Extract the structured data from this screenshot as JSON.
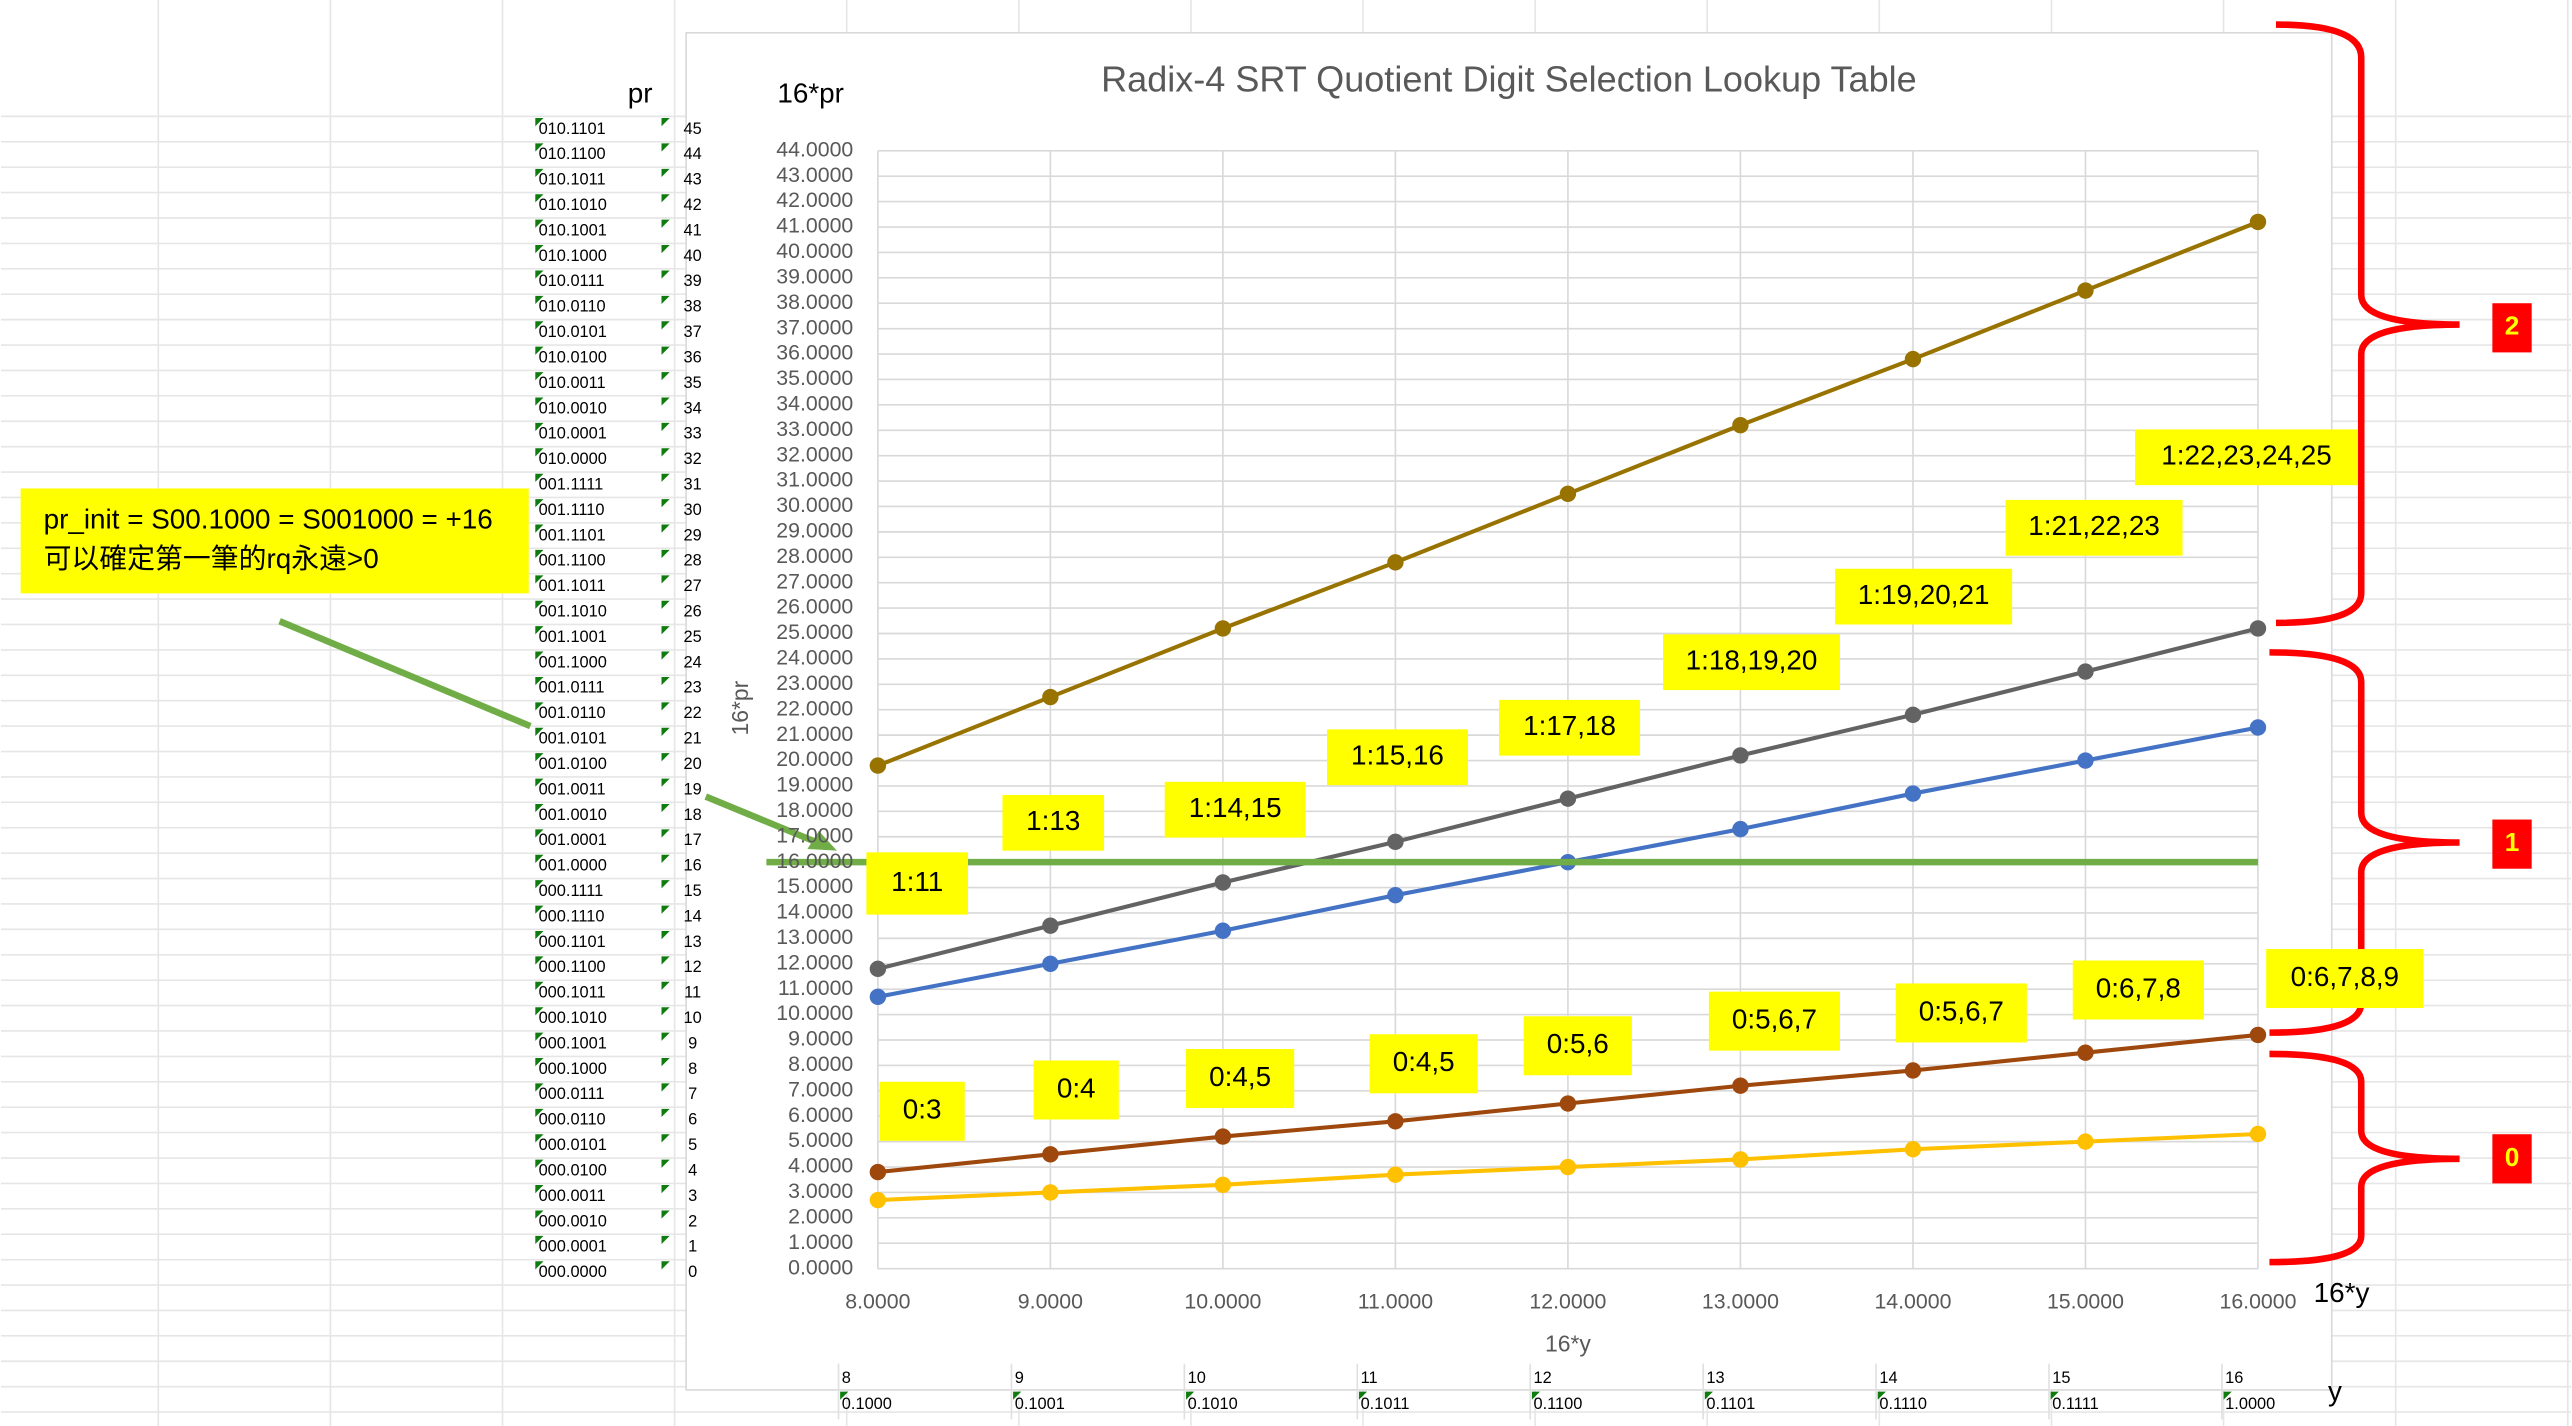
{
  "chart_data": {
    "type": "line",
    "title": "Radix-4 SRT Quotient Digit Selection Lookup Table",
    "x_label": "16*y",
    "y_label": "16*pr",
    "x": [
      8,
      9,
      10,
      11,
      12,
      13,
      14,
      15,
      16
    ],
    "xlim": [
      8,
      16
    ],
    "xticks": [
      {
        "value": 8,
        "label": "8.0000"
      },
      {
        "value": 9,
        "label": "9.0000"
      },
      {
        "value": 10,
        "label": "10.0000"
      },
      {
        "value": 11,
        "label": "11.0000"
      },
      {
        "value": 12,
        "label": "12.0000"
      },
      {
        "value": 13,
        "label": "13.0000"
      },
      {
        "value": 14,
        "label": "14.0000"
      },
      {
        "value": 15,
        "label": "15.0000"
      },
      {
        "value": 16,
        "label": "16.0000"
      }
    ],
    "ylim": [
      0,
      44
    ],
    "yticks": [
      {
        "value": 0,
        "label": "0.0000"
      },
      {
        "value": 1,
        "label": "1.0000"
      },
      {
        "value": 2,
        "label": "2.0000"
      },
      {
        "value": 3,
        "label": "3.0000"
      },
      {
        "value": 4,
        "label": "4.0000"
      },
      {
        "value": 5,
        "label": "5.0000"
      },
      {
        "value": 6,
        "label": "6.0000"
      },
      {
        "value": 7,
        "label": "7.0000"
      },
      {
        "value": 8,
        "label": "8.0000"
      },
      {
        "value": 9,
        "label": "9.0000"
      },
      {
        "value": 10,
        "label": "10.0000"
      },
      {
        "value": 11,
        "label": "11.0000"
      },
      {
        "value": 12,
        "label": "12.0000"
      },
      {
        "value": 13,
        "label": "13.0000"
      },
      {
        "value": 14,
        "label": "14.0000"
      },
      {
        "value": 15,
        "label": "15.0000"
      },
      {
        "value": 16,
        "label": "16.0000"
      },
      {
        "value": 17,
        "label": "17.0000"
      },
      {
        "value": 18,
        "label": "18.0000"
      },
      {
        "value": 19,
        "label": "19.0000"
      },
      {
        "value": 20,
        "label": "20.0000"
      },
      {
        "value": 21,
        "label": "21.0000"
      },
      {
        "value": 22,
        "label": "22.0000"
      },
      {
        "value": 23,
        "label": "23.0000"
      },
      {
        "value": 24,
        "label": "24.0000"
      },
      {
        "value": 25,
        "label": "25.0000"
      },
      {
        "value": 26,
        "label": "26.0000"
      },
      {
        "value": 27,
        "label": "27.0000"
      },
      {
        "value": 28,
        "label": "28.0000"
      },
      {
        "value": 29,
        "label": "29.0000"
      },
      {
        "value": 30,
        "label": "30.0000"
      },
      {
        "value": 31,
        "label": "31.0000"
      },
      {
        "value": 32,
        "label": "32.0000"
      },
      {
        "value": 33,
        "label": "33.0000"
      },
      {
        "value": 34,
        "label": "34.0000"
      },
      {
        "value": 35,
        "label": "35.0000"
      },
      {
        "value": 36,
        "label": "36.0000"
      },
      {
        "value": 37,
        "label": "37.0000"
      },
      {
        "value": 38,
        "label": "38.0000"
      },
      {
        "value": 39,
        "label": "39.0000"
      },
      {
        "value": 40,
        "label": "40.0000"
      },
      {
        "value": 41,
        "label": "41.0000"
      },
      {
        "value": 42,
        "label": "42.0000"
      },
      {
        "value": 43,
        "label": "43.0000"
      },
      {
        "value": 44,
        "label": "44.0000"
      }
    ],
    "grid": true,
    "series": [
      {
        "color": "#997300",
        "values": [
          19.8,
          22.5,
          25.2,
          27.8,
          30.5,
          33.2,
          35.8,
          38.5,
          41.2
        ]
      },
      {
        "color": "#636363",
        "values": [
          11.8,
          13.5,
          15.2,
          16.8,
          18.5,
          20.2,
          21.8,
          23.5,
          25.2
        ]
      },
      {
        "color": "#4472c4",
        "values": [
          10.7,
          12.0,
          13.3,
          14.7,
          16.0,
          17.3,
          18.7,
          20.0,
          21.3
        ]
      },
      {
        "color": "#9e480e",
        "values": [
          3.8,
          4.5,
          5.2,
          5.8,
          6.5,
          7.2,
          7.8,
          8.5,
          9.2
        ]
      },
      {
        "color": "#ffc000",
        "values": [
          2.7,
          3.0,
          3.3,
          3.7,
          4.0,
          4.3,
          4.7,
          5.0,
          5.3
        ]
      },
      {
        "color": "#70ad47",
        "markers": false,
        "values": [
          16,
          16,
          16,
          16,
          16,
          16,
          16,
          16,
          16
        ]
      }
    ],
    "annotations": [
      "1:11",
      "1:13",
      "1:14,15",
      "1:15,16",
      "1:17,18",
      "1:18,19,20",
      "1:19,20,21",
      "1:21,22,23",
      "1:22,23,24,25",
      "0:3",
      "0:4",
      "0:4,5",
      "0:4,5",
      "0:5,6",
      "0:5,6,7",
      "0:5,6,7",
      "0:6,7,8",
      "0:6,7,8,9"
    ]
  },
  "sheet": {
    "pr_header": "pr",
    "pr16_header": "16*pr",
    "y_header": "y",
    "y16_header": "16*y",
    "rows": [
      {
        "bin": "010.1101",
        "n": 45
      },
      {
        "bin": "010.1100",
        "n": 44
      },
      {
        "bin": "010.1011",
        "n": 43
      },
      {
        "bin": "010.1010",
        "n": 42
      },
      {
        "bin": "010.1001",
        "n": 41
      },
      {
        "bin": "010.1000",
        "n": 40
      },
      {
        "bin": "010.0111",
        "n": 39
      },
      {
        "bin": "010.0110",
        "n": 38
      },
      {
        "bin": "010.0101",
        "n": 37
      },
      {
        "bin": "010.0100",
        "n": 36
      },
      {
        "bin": "010.0011",
        "n": 35
      },
      {
        "bin": "010.0010",
        "n": 34
      },
      {
        "bin": "010.0001",
        "n": 33
      },
      {
        "bin": "010.0000",
        "n": 32
      },
      {
        "bin": "001.1111",
        "n": 31
      },
      {
        "bin": "001.1110",
        "n": 30
      },
      {
        "bin": "001.1101",
        "n": 29
      },
      {
        "bin": "001.1100",
        "n": 28
      },
      {
        "bin": "001.1011",
        "n": 27
      },
      {
        "bin": "001.1010",
        "n": 26
      },
      {
        "bin": "001.1001",
        "n": 25
      },
      {
        "bin": "001.1000",
        "n": 24
      },
      {
        "bin": "001.0111",
        "n": 23
      },
      {
        "bin": "001.0110",
        "n": 22
      },
      {
        "bin": "001.0101",
        "n": 21
      },
      {
        "bin": "001.0100",
        "n": 20
      },
      {
        "bin": "001.0011",
        "n": 19
      },
      {
        "bin": "001.0010",
        "n": 18
      },
      {
        "bin": "001.0001",
        "n": 17
      },
      {
        "bin": "001.0000",
        "n": 16
      },
      {
        "bin": "000.1111",
        "n": 15
      },
      {
        "bin": "000.1110",
        "n": 14
      },
      {
        "bin": "000.1101",
        "n": 13
      },
      {
        "bin": "000.1100",
        "n": 12
      },
      {
        "bin": "000.1011",
        "n": 11
      },
      {
        "bin": "000.1010",
        "n": 10
      },
      {
        "bin": "000.1001",
        "n": 9
      },
      {
        "bin": "000.1000",
        "n": 8
      },
      {
        "bin": "000.0111",
        "n": 7
      },
      {
        "bin": "000.0110",
        "n": 6
      },
      {
        "bin": "000.0101",
        "n": 5
      },
      {
        "bin": "000.0100",
        "n": 4
      },
      {
        "bin": "000.0011",
        "n": 3
      },
      {
        "bin": "000.0010",
        "n": 2
      },
      {
        "bin": "000.0001",
        "n": 1
      },
      {
        "bin": "000.0000",
        "n": 0
      }
    ],
    "y_cells": [
      {
        "n": 8,
        "bin": "0.1000"
      },
      {
        "n": 9,
        "bin": "0.1001"
      },
      {
        "n": 10,
        "bin": "0.1010"
      },
      {
        "n": 11,
        "bin": "0.1011"
      },
      {
        "n": 12,
        "bin": "0.1100"
      },
      {
        "n": 13,
        "bin": "0.1101"
      },
      {
        "n": 14,
        "bin": "0.1110"
      },
      {
        "n": 15,
        "bin": "0.1111"
      },
      {
        "n": 16,
        "bin": "1.0000"
      }
    ]
  },
  "note": [
    "pr_init = S00.1000 = S001000 = +16",
    "可以確定第一筆的rq永遠>0"
  ],
  "braces": [
    "2",
    "1",
    "0"
  ]
}
